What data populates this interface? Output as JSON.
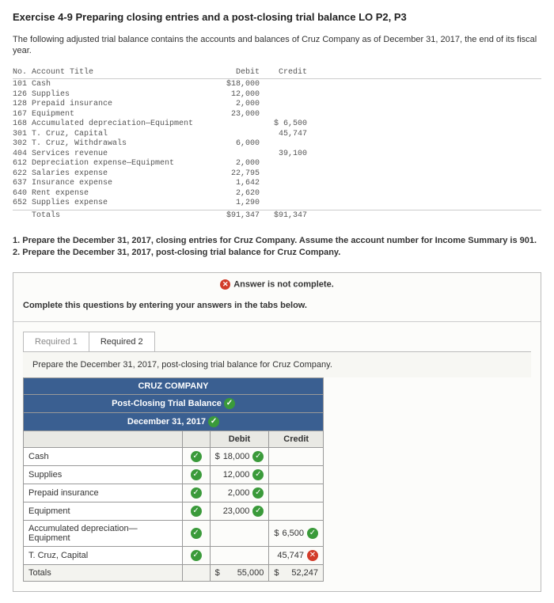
{
  "title": "Exercise 4-9 Preparing closing entries and a post-closing trial balance LO P2, P3",
  "intro": "The following adjusted trial balance contains the accounts and balances of Cruz Company as of December 31, 2017, the end of its fiscal year.",
  "trial_balance": {
    "headers": {
      "no": "No.",
      "title": "Account Title",
      "debit": "Debit",
      "credit": "Credit"
    },
    "rows": [
      {
        "no": "101",
        "title": "Cash",
        "debit": "$18,000",
        "credit": ""
      },
      {
        "no": "126",
        "title": "Supplies",
        "debit": "12,000",
        "credit": ""
      },
      {
        "no": "128",
        "title": "Prepaid insurance",
        "debit": "2,000",
        "credit": ""
      },
      {
        "no": "167",
        "title": "Equipment",
        "debit": "23,000",
        "credit": ""
      },
      {
        "no": "168",
        "title": "Accumulated depreciation—Equipment",
        "debit": "",
        "credit": "$ 6,500"
      },
      {
        "no": "301",
        "title": "T. Cruz, Capital",
        "debit": "",
        "credit": "45,747"
      },
      {
        "no": "302",
        "title": "T. Cruz, Withdrawals",
        "debit": "6,000",
        "credit": ""
      },
      {
        "no": "404",
        "title": "Services revenue",
        "debit": "",
        "credit": "39,100"
      },
      {
        "no": "612",
        "title": "Depreciation expense—Equipment",
        "debit": "2,000",
        "credit": ""
      },
      {
        "no": "622",
        "title": "Salaries expense",
        "debit": "22,795",
        "credit": ""
      },
      {
        "no": "637",
        "title": "Insurance expense",
        "debit": "1,642",
        "credit": ""
      },
      {
        "no": "640",
        "title": "Rent expense",
        "debit": "2,620",
        "credit": ""
      },
      {
        "no": "652",
        "title": "Supplies expense",
        "debit": "1,290",
        "credit": ""
      }
    ],
    "totals": {
      "label": "Totals",
      "debit": "$91,347",
      "credit": "$91,347"
    }
  },
  "requirements": {
    "r1": "1. Prepare the December 31, 2017, closing entries for Cruz Company. Assume the account number for Income Summary is 901.",
    "r2": "2. Prepare the December 31, 2017, post-closing trial balance for Cruz Company."
  },
  "answer_status": "Answer is not complete.",
  "tabs_instruction": "Complete this questions by entering your answers in the tabs below.",
  "tabs": {
    "t1": "Required 1",
    "t2": "Required 2"
  },
  "panel_instruction": "Prepare the December 31, 2017, post-closing trial balance for Cruz Company.",
  "ptb": {
    "company": "CRUZ COMPANY",
    "title": "Post-Closing Trial Balance",
    "date": "December 31, 2017",
    "col_debit": "Debit",
    "col_credit": "Credit",
    "rows": [
      {
        "acct": "Cash",
        "acct_ok": true,
        "debit": "18,000",
        "debit_dollar": true,
        "debit_ok": true,
        "credit": "",
        "credit_ok": null
      },
      {
        "acct": "Supplies",
        "acct_ok": true,
        "debit": "12,000",
        "debit_dollar": false,
        "debit_ok": true,
        "credit": "",
        "credit_ok": null
      },
      {
        "acct": "Prepaid insurance",
        "acct_ok": true,
        "debit": "2,000",
        "debit_dollar": false,
        "debit_ok": true,
        "credit": "",
        "credit_ok": null
      },
      {
        "acct": "Equipment",
        "acct_ok": true,
        "debit": "23,000",
        "debit_dollar": false,
        "debit_ok": true,
        "credit": "",
        "credit_ok": null
      },
      {
        "acct": "Accumulated depreciation—Equipment",
        "acct_ok": true,
        "debit": "",
        "debit_dollar": false,
        "debit_ok": null,
        "credit": "6,500",
        "credit_dollar": true,
        "credit_ok": true
      },
      {
        "acct": "T. Cruz, Capital",
        "acct_ok": true,
        "debit": "",
        "debit_dollar": false,
        "debit_ok": null,
        "credit": "45,747",
        "credit_dollar": false,
        "credit_ok": false
      }
    ],
    "totals": {
      "label": "Totals",
      "debit": "55,000",
      "credit": "52,247"
    }
  },
  "colors": {
    "header_blue": "#3a5f91",
    "ok_green": "#3a9a3a",
    "bad_red": "#d23c2a"
  }
}
